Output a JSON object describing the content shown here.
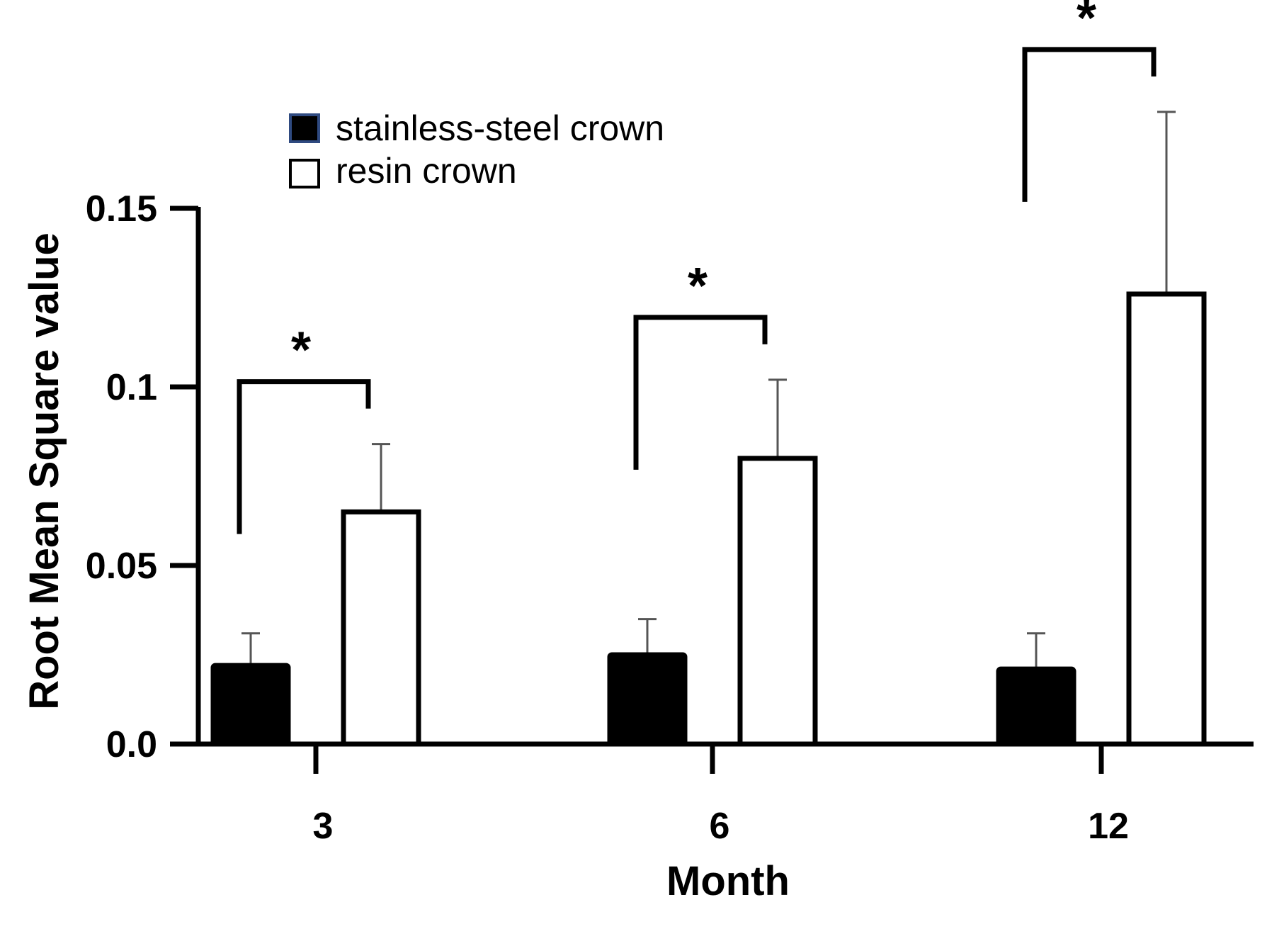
{
  "chart_data": {
    "type": "bar",
    "categories": [
      "3",
      "6",
      "12"
    ],
    "series": [
      {
        "name": "stainless-steel crown",
        "values": [
          0.022,
          0.025,
          0.021
        ],
        "errors": [
          0.009,
          0.01,
          0.01
        ],
        "fill": "#000000",
        "legend_border": "#2f4a80"
      },
      {
        "name": "resin crown",
        "values": [
          0.065,
          0.08,
          0.126
        ],
        "errors": [
          0.019,
          0.022,
          0.051
        ],
        "fill": "#ffffff",
        "legend_border": "#000000"
      }
    ],
    "significance": [
      "*",
      "*",
      "*"
    ],
    "xlabel": "Month",
    "ylabel": "Root Mean Square value",
    "yticks": [
      "0.0",
      "0.05",
      "0.1",
      "0.15"
    ],
    "ytick_values": [
      0,
      0.05,
      0.1,
      0.15
    ],
    "ylim": [
      0,
      0.15
    ],
    "grid": false,
    "legend_position": "top-left"
  }
}
